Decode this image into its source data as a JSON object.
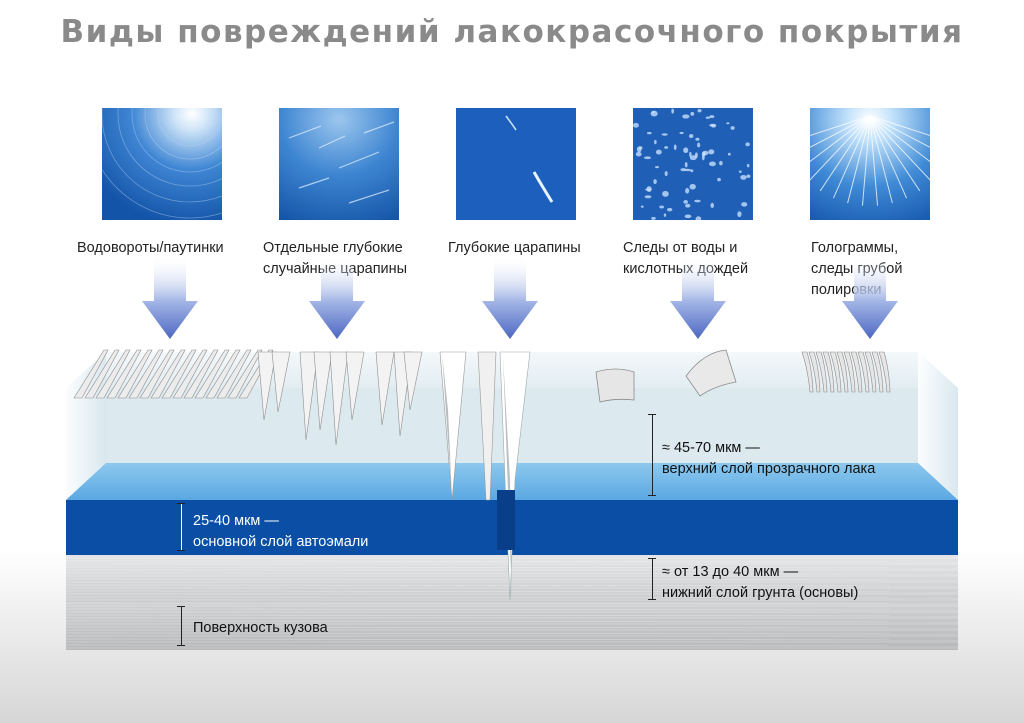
{
  "title": "Виды повреждений лакокрасочного покрытия",
  "damage_types": [
    {
      "label": "Водовороты/паутинки",
      "icon": "swirl-marks-photo"
    },
    {
      "label": "Отдельные глубокие\nслучайные царапины",
      "icon": "random-scratches-photo"
    },
    {
      "label": "Глубокие царапины",
      "icon": "deep-scratches-photo"
    },
    {
      "label": "Следы от воды и\nкислотных дождей",
      "icon": "water-spots-photo"
    },
    {
      "label": "Голограммы,\nследы грубой\nполировки",
      "icon": "holograms-photo"
    }
  ],
  "layers": {
    "clearcoat": {
      "text": "≈ 45-70 мкм —\nверхний слой прозрачного лака",
      "color": "#dbe9ef"
    },
    "basecoat": {
      "text": "25-40 мкм —\nосновной слой автоэмали",
      "color": "#0b4ea4"
    },
    "primer": {
      "text": "≈ от 13 до 40 мкм —\nнижний слой грунта (основы)",
      "color": "#d5d7d9"
    },
    "body": {
      "text": "Поверхность кузова",
      "color": "#c4c6c8"
    }
  },
  "colors": {
    "arrow": "#5b74c8",
    "title": "#8a8a8a",
    "accent_blue": "#1e62c0"
  }
}
